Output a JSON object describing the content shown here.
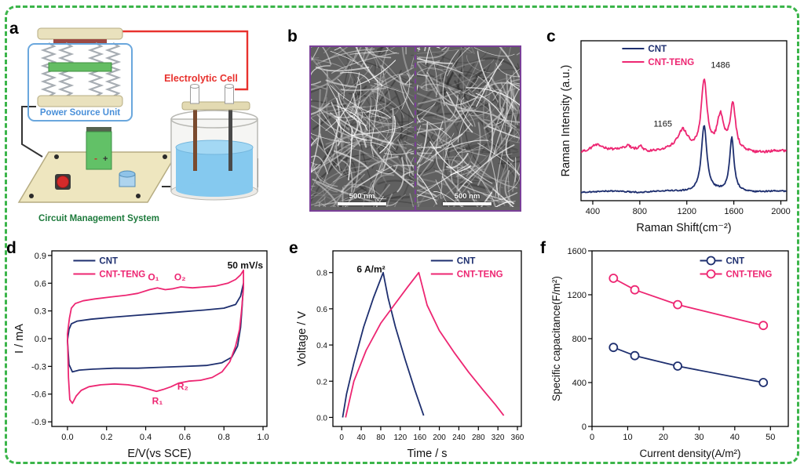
{
  "figure": {
    "border_color": "#3bb54a",
    "background": "#ffffff"
  },
  "colors": {
    "cnt": "#1e2f6f",
    "cnt_teng": "#ed2672",
    "sem_border": "#7a3f98"
  },
  "panels": {
    "a": {
      "letter": "a",
      "labels": {
        "power_source": "Power Source Unit",
        "electrolytic_cell": "Electrolytic Cell",
        "circuit_management": "Circuit Management System"
      }
    },
    "b": {
      "letter": "b",
      "scale_label": "500 nm"
    },
    "c": {
      "letter": "c"
    },
    "d": {
      "letter": "d"
    },
    "e": {
      "letter": "e"
    },
    "f": {
      "letter": "f"
    }
  },
  "chart_data": [
    {
      "panel": "c",
      "type": "line",
      "kind": "raman-spectra",
      "xlabel": "Raman Shift(cm⁻²)",
      "ylabel": "Raman Intensity (a.u.)",
      "xlim": [
        300,
        2050
      ],
      "ylim": [
        0,
        125
      ],
      "xticks": [
        [
          400,
          "400"
        ],
        [
          800,
          "800"
        ],
        [
          1200,
          "1200"
        ],
        [
          1600,
          "1600"
        ],
        [
          2000,
          "2000"
        ]
      ],
      "yticks": [],
      "layout": {
        "l": 28,
        "r": 10,
        "t": 10,
        "b": 44
      },
      "legend": {
        "x": 0.2,
        "y": 0.99
      },
      "series": [
        {
          "name": "CNT",
          "color": "#1e2f6f",
          "baseline": 7,
          "noise": 0.9,
          "peaks": [
            {
              "center": 1347,
              "amp": 52,
              "width": 28
            },
            {
              "center": 1583,
              "amp": 42,
              "width": 22
            }
          ]
        },
        {
          "name": "CNT-TENG",
          "color": "#ed2672",
          "baseline": 38,
          "noise": 1.8,
          "peaks": [
            {
              "center": 430,
              "amp": 6,
              "width": 60
            },
            {
              "center": 700,
              "amp": 4,
              "width": 45
            },
            {
              "center": 805,
              "amp": 5,
              "width": 28
            },
            {
              "center": 1165,
              "amp": 16,
              "width": 55
            },
            {
              "center": 1347,
              "amp": 55,
              "width": 30
            },
            {
              "center": 1486,
              "amp": 26,
              "width": 34
            },
            {
              "center": 1592,
              "amp": 36,
              "width": 26
            }
          ]
        }
      ],
      "annotations": [
        {
          "x": 1075,
          "y": 58,
          "text": "1165",
          "anchor": "end",
          "size": 11
        },
        {
          "x": 1486,
          "y": 104,
          "text": "1486",
          "anchor": "middle",
          "size": 11
        }
      ]
    },
    {
      "panel": "d",
      "type": "line",
      "kind": "cyclic-voltammetry",
      "xlabel": "E/V(vs SCE)",
      "ylabel": "I / mA",
      "xlim": [
        -0.08,
        1.02
      ],
      "ylim": [
        -0.95,
        0.95
      ],
      "xticks": [
        [
          0,
          "0.0"
        ],
        [
          0.2,
          "0.2"
        ],
        [
          0.4,
          "0.4"
        ],
        [
          0.6,
          "0.6"
        ],
        [
          0.8,
          "0.8"
        ],
        [
          1,
          "1.0"
        ]
      ],
      "yticks": [
        [
          -0.9,
          "-0.9"
        ],
        [
          -0.6,
          "-0.6"
        ],
        [
          -0.3,
          "-0.3"
        ],
        [
          0,
          "0.0"
        ],
        [
          0.3,
          "0.3"
        ],
        [
          0.6,
          "0.6"
        ],
        [
          0.9,
          "0.9"
        ]
      ],
      "layout": {
        "l": 50,
        "r": 12,
        "t": 8,
        "b": 44
      },
      "legend": {
        "x": 0.1,
        "y": 0.98
      },
      "scan_rate": "50 mV/s",
      "series": [
        {
          "name": "CNT",
          "color": "#1e2f6f",
          "closed": true,
          "points": [
            [
              0,
              -0.02
            ],
            [
              0.008,
              0.1
            ],
            [
              0.02,
              0.16
            ],
            [
              0.05,
              0.19
            ],
            [
              0.12,
              0.21
            ],
            [
              0.22,
              0.23
            ],
            [
              0.34,
              0.25
            ],
            [
              0.46,
              0.27
            ],
            [
              0.58,
              0.29
            ],
            [
              0.7,
              0.31
            ],
            [
              0.8,
              0.33
            ],
            [
              0.86,
              0.37
            ],
            [
              0.885,
              0.46
            ],
            [
              0.9,
              0.6
            ],
            [
              0.893,
              0.35
            ],
            [
              0.885,
              0.12
            ],
            [
              0.87,
              -0.08
            ],
            [
              0.84,
              -0.2
            ],
            [
              0.79,
              -0.26
            ],
            [
              0.71,
              -0.29
            ],
            [
              0.6,
              -0.3
            ],
            [
              0.48,
              -0.31
            ],
            [
              0.36,
              -0.32
            ],
            [
              0.24,
              -0.32
            ],
            [
              0.13,
              -0.33
            ],
            [
              0.06,
              -0.34
            ],
            [
              0.025,
              -0.36
            ],
            [
              0.008,
              -0.28
            ]
          ]
        },
        {
          "name": "CNT-TENG",
          "color": "#ed2672",
          "closed": true,
          "points": [
            [
              0,
              0.05
            ],
            [
              0.01,
              0.22
            ],
            [
              0.02,
              0.33
            ],
            [
              0.04,
              0.38
            ],
            [
              0.08,
              0.41
            ],
            [
              0.14,
              0.43
            ],
            [
              0.22,
              0.45
            ],
            [
              0.3,
              0.47
            ],
            [
              0.36,
              0.49
            ],
            [
              0.42,
              0.53
            ],
            [
              0.46,
              0.55
            ],
            [
              0.5,
              0.53
            ],
            [
              0.54,
              0.54
            ],
            [
              0.58,
              0.56
            ],
            [
              0.64,
              0.55
            ],
            [
              0.7,
              0.56
            ],
            [
              0.76,
              0.57
            ],
            [
              0.82,
              0.6
            ],
            [
              0.86,
              0.64
            ],
            [
              0.885,
              0.69
            ],
            [
              0.9,
              0.74
            ],
            [
              0.9,
              0.55
            ],
            [
              0.89,
              0.3
            ],
            [
              0.88,
              0.1
            ],
            [
              0.86,
              -0.08
            ],
            [
              0.83,
              -0.25
            ],
            [
              0.79,
              -0.36
            ],
            [
              0.74,
              -0.42
            ],
            [
              0.68,
              -0.45
            ],
            [
              0.62,
              -0.46
            ],
            [
              0.57,
              -0.48
            ],
            [
              0.53,
              -0.52
            ],
            [
              0.49,
              -0.55
            ],
            [
              0.455,
              -0.57
            ],
            [
              0.42,
              -0.55
            ],
            [
              0.37,
              -0.52
            ],
            [
              0.31,
              -0.5
            ],
            [
              0.24,
              -0.49
            ],
            [
              0.17,
              -0.5
            ],
            [
              0.11,
              -0.52
            ],
            [
              0.07,
              -0.56
            ],
            [
              0.045,
              -0.62
            ],
            [
              0.025,
              -0.7
            ],
            [
              0.012,
              -0.66
            ],
            [
              0.005,
              -0.42
            ]
          ]
        }
      ],
      "annotations": [
        {
          "x": 0.44,
          "y": 0.63,
          "text": "O₁",
          "color": "#ed2672",
          "bold": true
        },
        {
          "x": 0.575,
          "y": 0.63,
          "text": "O₂",
          "color": "#ed2672",
          "bold": true
        },
        {
          "x": 0.46,
          "y": -0.71,
          "text": "R₁",
          "color": "#ed2672",
          "bold": true
        },
        {
          "x": 0.59,
          "y": -0.55,
          "text": "R₂",
          "color": "#ed2672",
          "bold": true
        },
        {
          "x": 1.0,
          "y": 0.76,
          "text": "50 mV/s",
          "anchor": "end",
          "bold": true
        }
      ]
    },
    {
      "panel": "e",
      "type": "line",
      "kind": "galvanostatic-charge-discharge",
      "xlabel": "Time / s",
      "ylabel": "Voltage / V",
      "xlim": [
        -18,
        368
      ],
      "ylim": [
        -0.05,
        0.92
      ],
      "xticks": [
        [
          0,
          "0"
        ],
        [
          40,
          "40"
        ],
        [
          80,
          "80"
        ],
        [
          120,
          "120"
        ],
        [
          160,
          "160"
        ],
        [
          200,
          "200"
        ],
        [
          240,
          "240"
        ],
        [
          280,
          "280"
        ],
        [
          320,
          "320"
        ],
        [
          360,
          "360"
        ]
      ],
      "yticks": [
        [
          0,
          "0.0"
        ],
        [
          0.2,
          "0.2"
        ],
        [
          0.4,
          "0.4"
        ],
        [
          0.6,
          "0.6"
        ],
        [
          0.8,
          "0.8"
        ]
      ],
      "layout": {
        "l": 48,
        "r": 12,
        "t": 8,
        "b": 44
      },
      "tick_size": 10,
      "legend": {
        "x": 0.52,
        "y": 0.98
      },
      "current_density": "6 A/m²",
      "series": [
        {
          "name": "CNT",
          "color": "#1e2f6f",
          "points": [
            [
              2,
              0
            ],
            [
              10,
              0.13
            ],
            [
              25,
              0.3
            ],
            [
              45,
              0.5
            ],
            [
              65,
              0.66
            ],
            [
              85,
              0.8
            ],
            [
              95,
              0.66
            ],
            [
              110,
              0.5
            ],
            [
              130,
              0.32
            ],
            [
              150,
              0.15
            ],
            [
              168,
              0.01
            ]
          ]
        },
        {
          "name": "CNT-TENG",
          "color": "#ed2672",
          "points": [
            [
              8,
              0
            ],
            [
              25,
              0.2
            ],
            [
              50,
              0.37
            ],
            [
              80,
              0.52
            ],
            [
              110,
              0.63
            ],
            [
              135,
              0.72
            ],
            [
              158,
              0.8
            ],
            [
              175,
              0.62
            ],
            [
              200,
              0.48
            ],
            [
              230,
              0.36
            ],
            [
              260,
              0.25
            ],
            [
              290,
              0.15
            ],
            [
              315,
              0.07
            ],
            [
              332,
              0.01
            ]
          ]
        }
      ],
      "annotations": [
        {
          "x": 60,
          "y": 0.8,
          "text": "6 A/m²",
          "bold": true
        }
      ]
    },
    {
      "panel": "f",
      "type": "line",
      "kind": "rate-capability",
      "xlabel": "Current density(A/m²)",
      "ylabel": "Specific capacitance(F/m²)",
      "xlim": [
        0,
        55
      ],
      "ylim": [
        0,
        1600
      ],
      "xticks": [
        [
          0,
          "0"
        ],
        [
          10,
          "10"
        ],
        [
          20,
          "20"
        ],
        [
          30,
          "30"
        ],
        [
          40,
          "40"
        ],
        [
          50,
          "50"
        ]
      ],
      "yticks": [
        [
          0,
          "0"
        ],
        [
          400,
          "400"
        ],
        [
          800,
          "800"
        ],
        [
          1200,
          "1200"
        ],
        [
          1600,
          "1600"
        ]
      ],
      "layout": {
        "l": 54,
        "r": 12,
        "t": 8,
        "b": 44
      },
      "label_size": 13.5,
      "legend": {
        "x": 0.55,
        "y": 0.98
      },
      "series": [
        {
          "name": "CNT",
          "color": "#1e2f6f",
          "marker": "circle",
          "points": [
            [
              6,
              720
            ],
            [
              12,
              645
            ],
            [
              24,
              550
            ],
            [
              48,
              400
            ]
          ]
        },
        {
          "name": "CNT-TENG",
          "color": "#ed2672",
          "marker": "circle",
          "points": [
            [
              6,
              1350
            ],
            [
              12,
              1245
            ],
            [
              24,
              1110
            ],
            [
              48,
              920
            ]
          ]
        }
      ],
      "annotations": []
    }
  ]
}
